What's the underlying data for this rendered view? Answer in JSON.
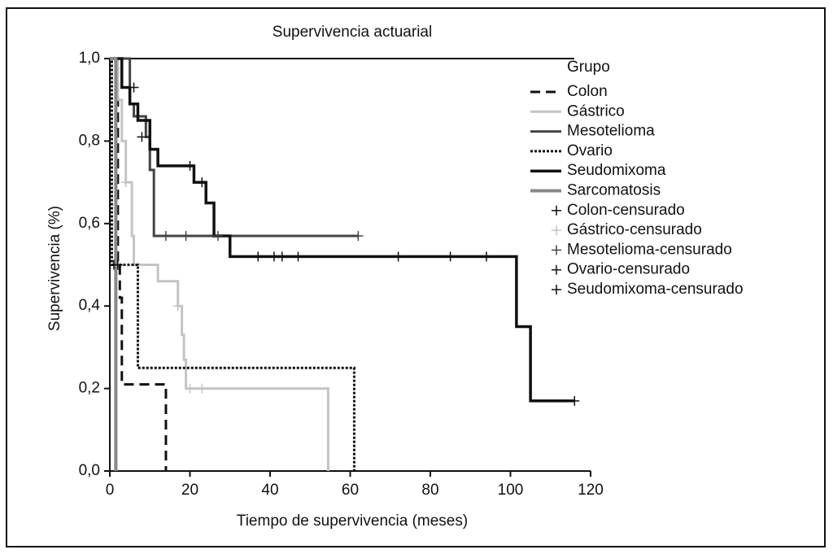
{
  "chart_data": {
    "type": "step",
    "title": "Supervivencia actuarial",
    "x_label": "Tiempo de supervivencia (meses)",
    "y_label": "Supervivencia (%)",
    "legend_title": "Grupo",
    "xlim": [
      0,
      120
    ],
    "xticks": [
      0,
      20,
      40,
      60,
      80,
      100,
      120
    ],
    "ylim": [
      0,
      1
    ],
    "yticks": [
      {
        "value": 0,
        "label": "0,0"
      },
      {
        "value": 0.2,
        "label": "0,2"
      },
      {
        "value": 0.4,
        "label": "0,4"
      },
      {
        "value": 0.6,
        "label": "0,6"
      },
      {
        "value": 0.8,
        "label": "0,8"
      },
      {
        "value": 1,
        "label": "1,0"
      }
    ],
    "series": [
      {
        "name": "Colon",
        "color": "#111111",
        "dash": "12,7",
        "width": 3,
        "x": [
          0,
          2,
          2.5,
          3,
          14
        ],
        "values": [
          1,
          0.5,
          0.42,
          0.21,
          0
        ]
      },
      {
        "name": "Gástrico",
        "color": "#c4c4c4",
        "dash": "none",
        "width": 3,
        "x": [
          0,
          2,
          3,
          4,
          5.5,
          6,
          12,
          17,
          18,
          18.5,
          19,
          54.5
        ],
        "values": [
          1,
          0.9,
          0.8,
          0.7,
          0.57,
          0.5,
          0.46,
          0.4,
          0.33,
          0.27,
          0.2,
          0
        ]
      },
      {
        "name": "Mesotelioma",
        "color": "#444444",
        "dash": "none",
        "width": 3,
        "x": [
          0,
          5,
          6,
          9,
          10,
          11,
          62
        ],
        "values": [
          1,
          0.89,
          0.86,
          0.81,
          0.73,
          0.57,
          0.57
        ]
      },
      {
        "name": "Ovario",
        "color": "#111111",
        "dash": "3,2",
        "width": 3,
        "x": [
          0,
          0.5,
          7,
          61
        ],
        "values": [
          1,
          0.5,
          0.25,
          0
        ]
      },
      {
        "name": "Seudomixoma",
        "color": "#111111",
        "dash": "none",
        "width": 3.5,
        "x": [
          0,
          3,
          5,
          7,
          10,
          12,
          21,
          24,
          26,
          30,
          101.5,
          105,
          116
        ],
        "values": [
          1,
          0.93,
          0.89,
          0.85,
          0.78,
          0.74,
          0.7,
          0.65,
          0.57,
          0.52,
          0.35,
          0.17,
          0.17
        ]
      },
      {
        "name": "Sarcomatosis",
        "color": "#888888",
        "dash": "none",
        "width": 4,
        "x": [
          0,
          1.5
        ],
        "values": [
          1,
          0
        ]
      },
      {
        "name": "Colon-censurado",
        "color": "#111111",
        "marker": "+",
        "x": [
          2
        ],
        "values": [
          0.5
        ]
      },
      {
        "name": "Gástrico-censurado",
        "color": "#c4c4c4",
        "marker": "+",
        "x": [
          4,
          17,
          20,
          23
        ],
        "values": [
          0.7,
          0.4,
          0.2,
          0.2
        ]
      },
      {
        "name": "Mesotelioma-censurado",
        "color": "#444444",
        "marker": "+",
        "x": [
          14,
          19,
          27,
          62
        ],
        "values": [
          0.57,
          0.57,
          0.57,
          0.57
        ]
      },
      {
        "name": "Ovario-censurado",
        "color": "#111111",
        "marker": "+",
        "x": [
          1
        ],
        "values": [
          0.5
        ]
      },
      {
        "name": "Seudomixoma-censurado",
        "color": "#111111",
        "marker": "+",
        "x": [
          6,
          8,
          20,
          23,
          37,
          41,
          43,
          47,
          72,
          85,
          94,
          116
        ],
        "values": [
          0.93,
          0.81,
          0.74,
          0.7,
          0.52,
          0.52,
          0.52,
          0.52,
          0.52,
          0.52,
          0.52,
          0.17
        ]
      }
    ]
  }
}
